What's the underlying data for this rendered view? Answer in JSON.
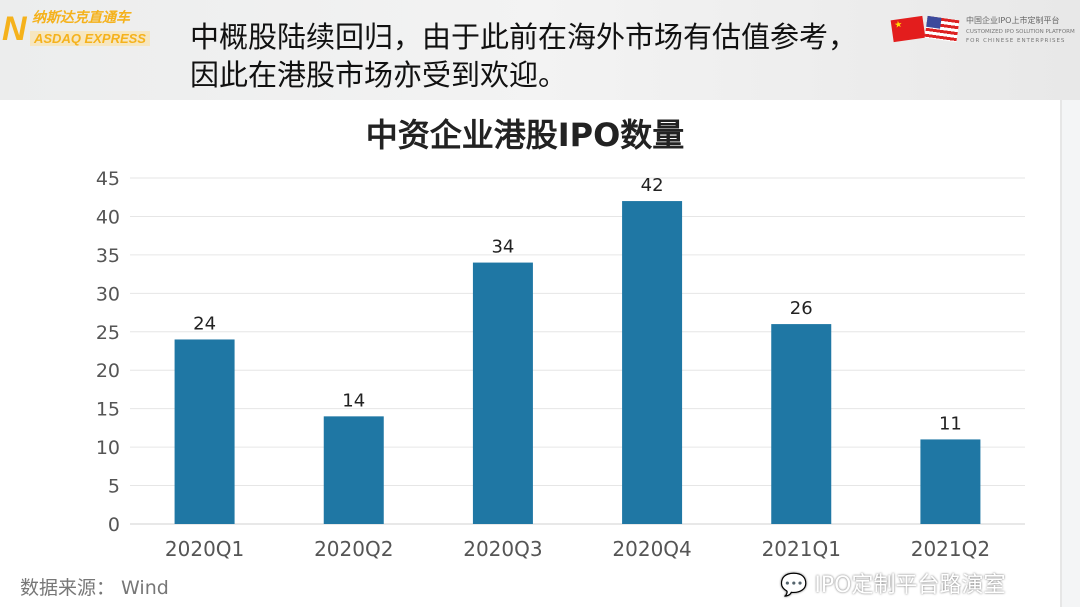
{
  "header": {
    "logo_left": {
      "letter": "N",
      "cn": "纳斯达克直通车",
      "en": "ASDAQ EXPRESS"
    },
    "headline": "中概股陆续回归，由于此前在海外市场有估值参考，因此在港股市场亦受到欢迎。",
    "logo_right": {
      "cn": "中国企业IPO上市定制平台",
      "en1": "CUSTOMIZED IPO SOLUTION PLATFORM",
      "en2": "FOR CHINESE ENTERPRISES"
    }
  },
  "chart_data": {
    "type": "bar",
    "title": "中资企业港股IPO数量",
    "categories": [
      "2020Q1",
      "2020Q2",
      "2020Q3",
      "2020Q4",
      "2021Q1",
      "2021Q2"
    ],
    "values": [
      24,
      14,
      34,
      42,
      26,
      11
    ],
    "ylim": [
      0,
      45
    ],
    "yticks": [
      0,
      5,
      10,
      15,
      20,
      25,
      30,
      35,
      40,
      45
    ],
    "grid": true,
    "bar_color": "#1f77a4",
    "xlabel": "",
    "ylabel": ""
  },
  "footer": {
    "source": "数据来源： Wind",
    "watermark": "IPO定制平台路演室"
  }
}
